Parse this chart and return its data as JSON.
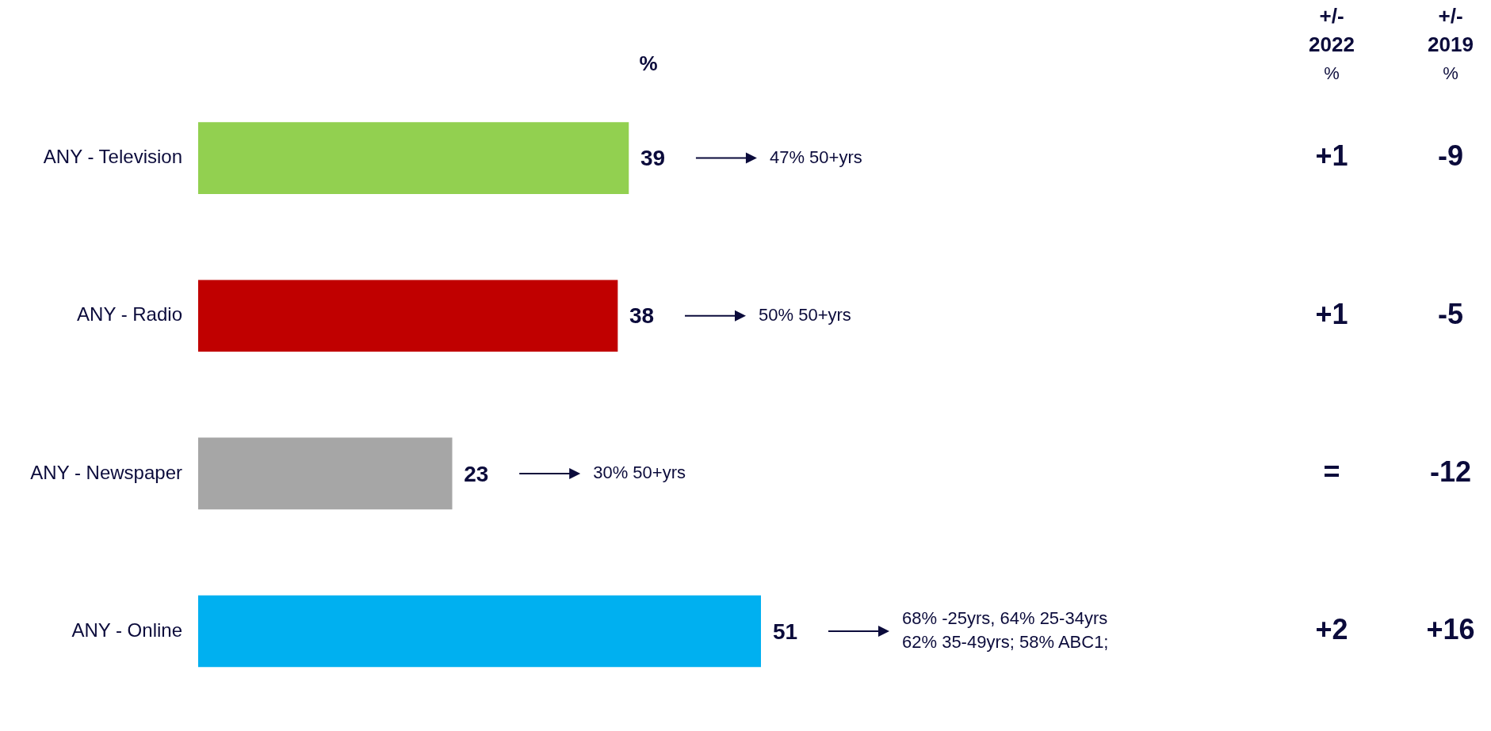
{
  "chart_data": {
    "type": "bar",
    "orientation": "horizontal",
    "xlabel": "%",
    "categories": [
      "ANY - Television",
      "ANY - Radio",
      "ANY - Newspaper",
      "ANY - Online"
    ],
    "values": [
      39,
      38,
      23,
      51
    ],
    "colors": [
      "#92d050",
      "#c00000",
      "#a6a6a6",
      "#00b0f0"
    ],
    "data_labels": true,
    "legend": false,
    "grid": false,
    "annotations": [
      "+/-\n2022\n%",
      "+/-\n2019\n%",
      "47% 50+yrs",
      "+1",
      "-9",
      "50% 50+yrs",
      "+1",
      "-5",
      "30% 50+yrs",
      "=",
      "-12",
      "68% -25yrs, 64% 25-34yrs\n62% 35-49yrs; 58% ABC1;",
      "+2",
      "+16"
    ]
  }
}
